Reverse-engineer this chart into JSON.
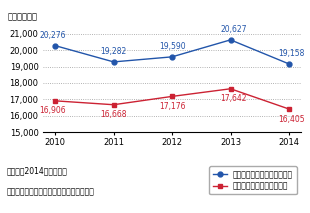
{
  "years": [
    2010,
    2011,
    2012,
    2013,
    2014
  ],
  "daytrip": [
    20276,
    19282,
    19590,
    20627,
    19158
  ],
  "overnight": [
    16906,
    16668,
    17176,
    17642,
    16405
  ],
  "daytrip_color": "#2255aa",
  "overnight_color": "#cc2233",
  "ylabel": "（万人・回）",
  "ylim": [
    15000,
    21500
  ],
  "yticks": [
    15000,
    16000,
    17000,
    18000,
    19000,
    20000,
    21000
  ],
  "legend_daytrip": "国内日帰り観光旅行延べ人数",
  "legend_overnight": "国内宿泊観光旅行延べ人数",
  "note1": "（注）　2014年は速報値",
  "note2": "資料）観光庁「旅行・観光消費動向調査」",
  "annotation_fontsize": 5.5,
  "tick_fontsize": 6.0,
  "legend_fontsize": 5.5,
  "note_fontsize": 5.5,
  "ylabel_fontsize": 6.0,
  "xlabel_fontsize": 6.0
}
